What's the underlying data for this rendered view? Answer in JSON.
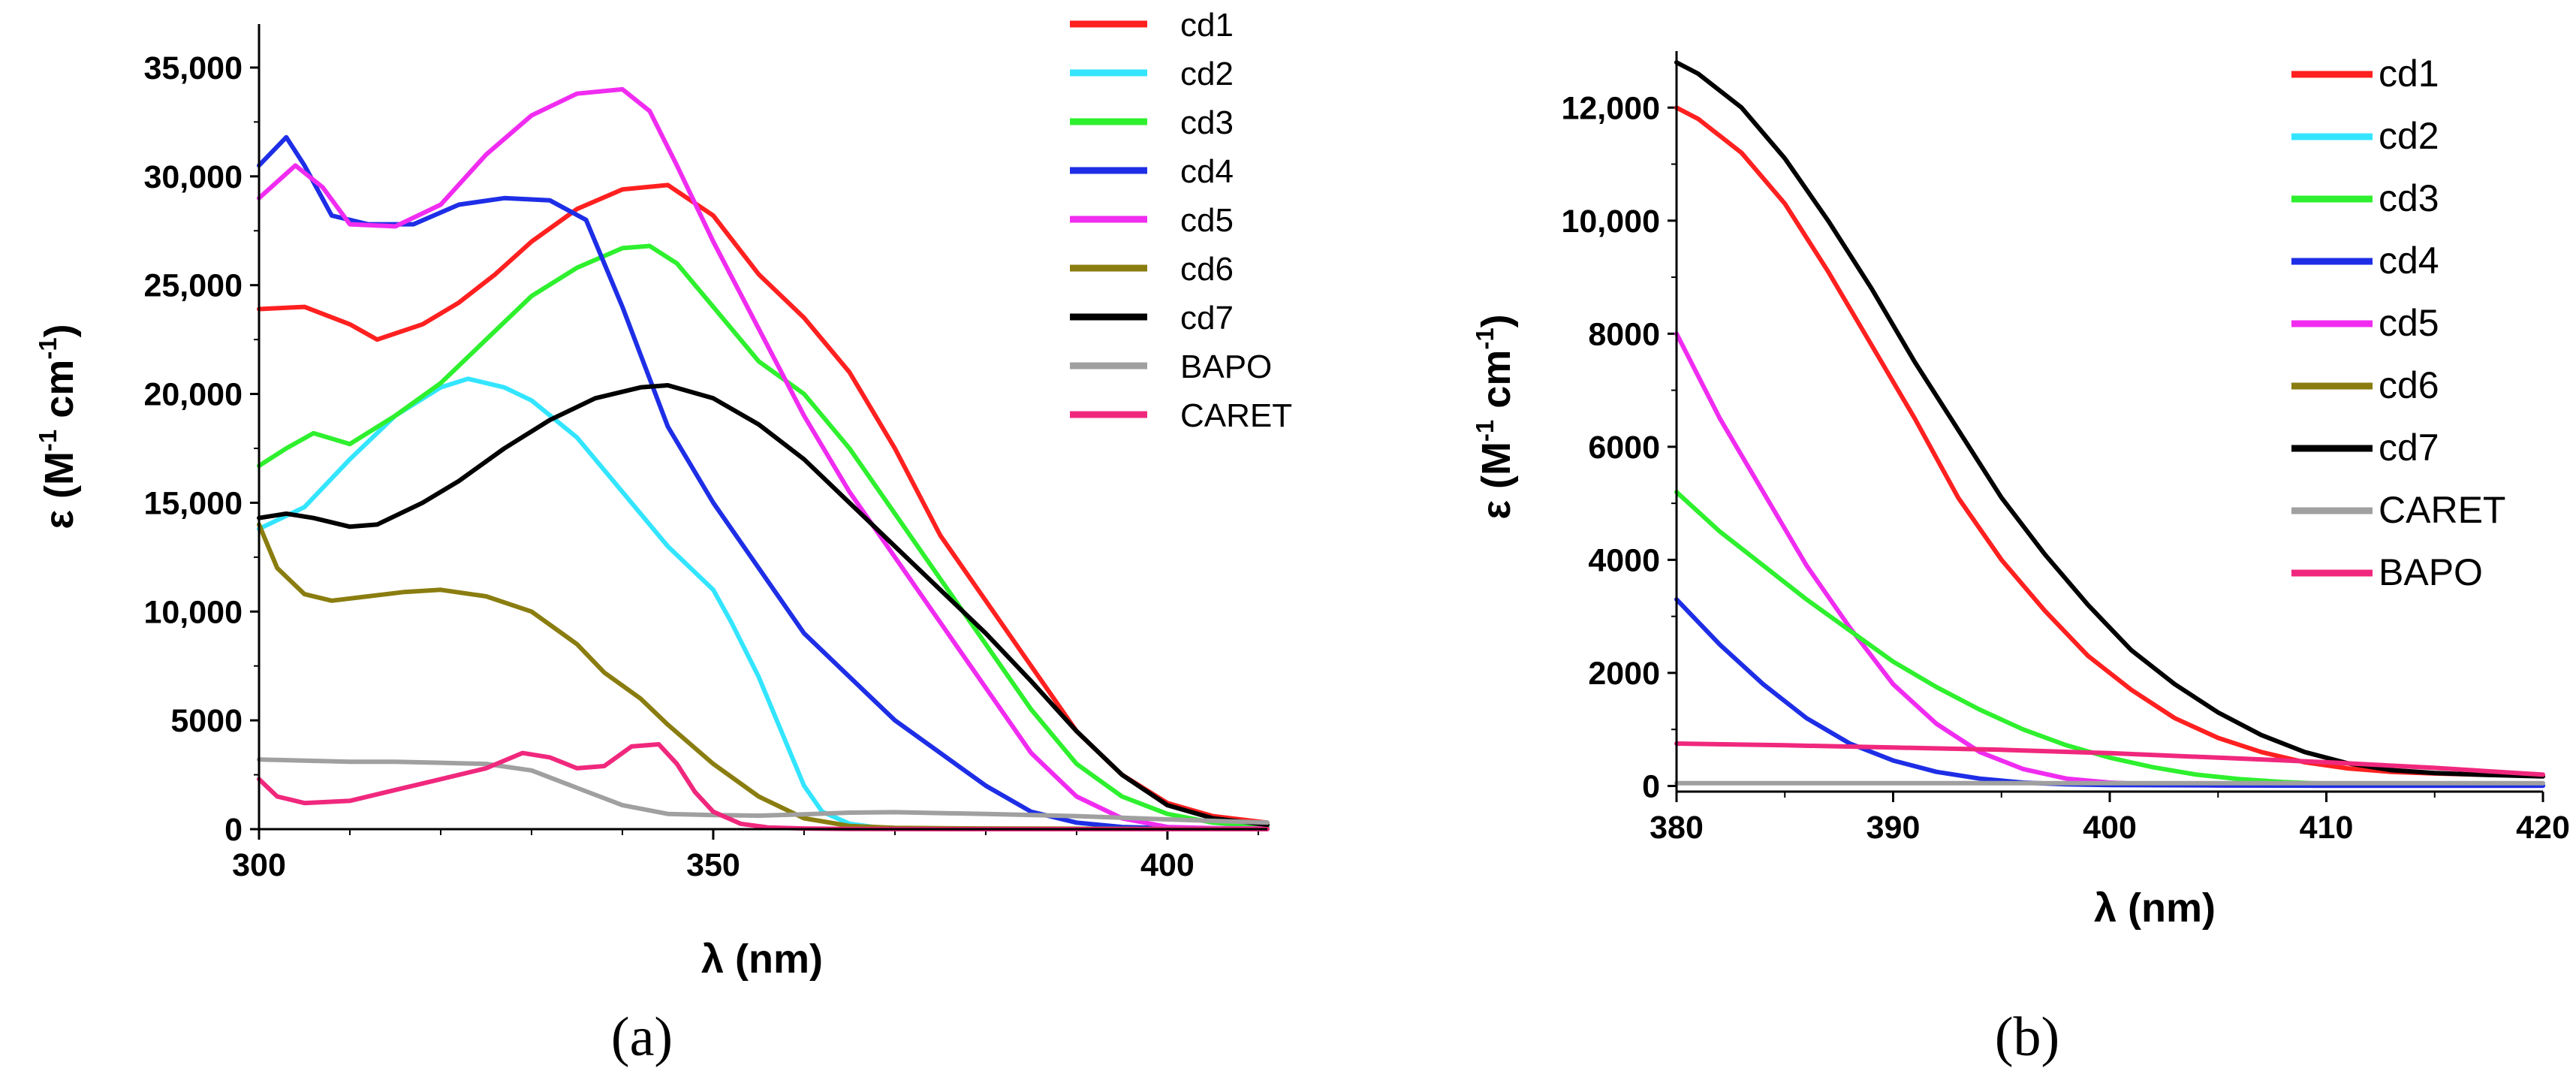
{
  "colors": {
    "cd1": "#ff2020",
    "cd2": "#33e5ff",
    "cd3": "#2ef02e",
    "cd4": "#1e2ee6",
    "cd5": "#f02cf0",
    "cd6": "#8a7d10",
    "cd7": "#000000",
    "BAPO": "#a0a0a0",
    "CARET": "#f0287d",
    "legend_cd4_text": "#1e2ee6"
  },
  "chart_data": [
    {
      "type": "line",
      "caption": "(a)",
      "xlabel": "λ (nm)",
      "ylabel_main": "ε (M",
      "ylabel_exp1": "-1",
      "ylabel_mid": " cm",
      "ylabel_exp2": "-1",
      "ylabel_end": ")",
      "xlim": [
        300,
        411
      ],
      "ylim": [
        0,
        37000
      ],
      "xticks": [
        300,
        350,
        400
      ],
      "xtick_labels": [
        "300",
        "350",
        "400"
      ],
      "yticks": [
        0,
        5000,
        10000,
        15000,
        20000,
        25000,
        30000,
        35000
      ],
      "ytick_labels": [
        "0",
        "5000",
        "10,000",
        "15,000",
        "20,000",
        "25,000",
        "30,000",
        "35,000"
      ],
      "legend_position": "top-right",
      "legend": [
        "cd1",
        "cd2",
        "cd3",
        "cd4",
        "cd5",
        "cd6",
        "cd7",
        "BAPO",
        "CARET"
      ],
      "series": [
        {
          "name": "cd1",
          "x": [
            300,
            305,
            310,
            313,
            318,
            322,
            326,
            330,
            335,
            340,
            345,
            350,
            355,
            360,
            365,
            370,
            375,
            380,
            385,
            390,
            395,
            400,
            405,
            411
          ],
          "y": [
            23900,
            24000,
            23200,
            22500,
            23200,
            24200,
            25500,
            27000,
            28500,
            29400,
            29600,
            28200,
            25500,
            23500,
            21000,
            17500,
            13500,
            10500,
            7500,
            4500,
            2500,
            1200,
            600,
            300
          ]
        },
        {
          "name": "cd2",
          "x": [
            300,
            305,
            310,
            315,
            320,
            323,
            327,
            330,
            335,
            340,
            345,
            350,
            352,
            355,
            358,
            360,
            362,
            365,
            368,
            370,
            375,
            380,
            385,
            390,
            400,
            411
          ],
          "y": [
            13800,
            14800,
            17000,
            19000,
            20300,
            20700,
            20300,
            19700,
            18000,
            15500,
            13000,
            11000,
            9500,
            7000,
            4000,
            2000,
            800,
            250,
            80,
            50,
            30,
            20,
            10,
            10,
            10,
            10
          ]
        },
        {
          "name": "cd3",
          "x": [
            300,
            303,
            306,
            310,
            315,
            320,
            325,
            330,
            335,
            340,
            343,
            346,
            350,
            355,
            360,
            365,
            370,
            375,
            380,
            385,
            390,
            395,
            400,
            405,
            411
          ],
          "y": [
            16700,
            17500,
            18200,
            17700,
            19000,
            20500,
            22500,
            24500,
            25800,
            26700,
            26800,
            26000,
            24000,
            21500,
            20000,
            17500,
            14500,
            11500,
            8500,
            5500,
            3000,
            1500,
            700,
            300,
            100
          ]
        },
        {
          "name": "cd4",
          "x": [
            300,
            303,
            305,
            308,
            312,
            317,
            322,
            327,
            332,
            336,
            340,
            345,
            350,
            355,
            360,
            365,
            370,
            375,
            380,
            385,
            390,
            395,
            400
          ],
          "y": [
            30500,
            31800,
            30500,
            28200,
            27800,
            27800,
            28700,
            29000,
            28900,
            28000,
            24000,
            18500,
            15000,
            12000,
            9000,
            7000,
            5000,
            3500,
            2000,
            800,
            300,
            100,
            50
          ]
        },
        {
          "name": "cd5",
          "x": [
            300,
            304,
            307,
            310,
            315,
            320,
            325,
            330,
            335,
            340,
            343,
            346,
            350,
            355,
            360,
            365,
            370,
            375,
            380,
            385,
            390,
            395,
            400,
            405,
            411
          ],
          "y": [
            29000,
            30500,
            29500,
            27800,
            27700,
            28700,
            31000,
            32800,
            33800,
            34000,
            33000,
            30500,
            27000,
            23000,
            19000,
            15500,
            12500,
            9500,
            6500,
            3500,
            1500,
            500,
            100,
            50,
            30
          ]
        },
        {
          "name": "cd6",
          "x": [
            300,
            302,
            305,
            308,
            312,
            316,
            320,
            325,
            330,
            335,
            338,
            342,
            345,
            350,
            355,
            360,
            365,
            370,
            375,
            380,
            390,
            400,
            411
          ],
          "y": [
            14000,
            12000,
            10800,
            10500,
            10700,
            10900,
            11000,
            10700,
            10000,
            8500,
            7200,
            6000,
            4800,
            3000,
            1500,
            500,
            150,
            60,
            40,
            30,
            20,
            10,
            10
          ]
        },
        {
          "name": "cd7",
          "x": [
            300,
            303,
            306,
            310,
            313,
            318,
            322,
            327,
            332,
            337,
            342,
            345,
            350,
            355,
            360,
            365,
            370,
            375,
            380,
            385,
            390,
            395,
            400,
            405,
            411
          ],
          "y": [
            14300,
            14500,
            14300,
            13900,
            14000,
            15000,
            16000,
            17500,
            18800,
            19800,
            20300,
            20400,
            19800,
            18600,
            17000,
            15000,
            13000,
            11000,
            9000,
            6800,
            4500,
            2500,
            1100,
            500,
            200
          ]
        },
        {
          "name": "BAPO",
          "x": [
            300,
            305,
            310,
            315,
            320,
            325,
            330,
            335,
            340,
            345,
            350,
            355,
            360,
            365,
            370,
            375,
            380,
            390,
            400,
            411
          ],
          "y": [
            3200,
            3150,
            3100,
            3100,
            3050,
            3000,
            2700,
            1900,
            1100,
            700,
            650,
            620,
            680,
            760,
            780,
            740,
            700,
            600,
            450,
            300
          ]
        },
        {
          "name": "CARET",
          "x": [
            300,
            302,
            305,
            310,
            315,
            320,
            325,
            329,
            332,
            335,
            338,
            341,
            344,
            346,
            348,
            350,
            353,
            356,
            360,
            365,
            370,
            380,
            390,
            400,
            411
          ],
          "y": [
            2300,
            1500,
            1200,
            1300,
            1800,
            2300,
            2800,
            3500,
            3300,
            2800,
            2900,
            3800,
            3900,
            3000,
            1700,
            800,
            250,
            80,
            30,
            10,
            5,
            0,
            0,
            0,
            0
          ]
        }
      ]
    },
    {
      "type": "line",
      "caption": "(b)",
      "xlabel": "λ (nm)",
      "ylabel_main": "ε (M",
      "ylabel_exp1": "-1",
      "ylabel_mid": " cm",
      "ylabel_exp2": "-1",
      "ylabel_end": ")",
      "xlim": [
        380,
        420
      ],
      "ylim": [
        -100,
        13000
      ],
      "xticks": [
        380,
        390,
        400,
        410,
        420
      ],
      "xtick_labels": [
        "380",
        "390",
        "400",
        "410",
        "420"
      ],
      "yticks": [
        0,
        2000,
        4000,
        6000,
        8000,
        10000,
        12000
      ],
      "ytick_labels": [
        "0",
        "2000",
        "4000",
        "6000",
        "8000",
        "10,000",
        "12,000"
      ],
      "legend_position": "top-right",
      "legend": [
        "cd1",
        "cd2",
        "cd3",
        "cd4",
        "cd5",
        "cd6",
        "cd7",
        "CARET",
        "BAPO"
      ],
      "legend_color_keys": [
        "cd1",
        "cd2",
        "cd3",
        "cd4",
        "cd5",
        "cd6",
        "cd7",
        "BAPO",
        "CARET"
      ],
      "series": [
        {
          "name": "cd1",
          "color_key": "cd1",
          "x": [
            380,
            381,
            383,
            385,
            387,
            389,
            391,
            393,
            395,
            397,
            399,
            401,
            403,
            405,
            407,
            409,
            411,
            413,
            415,
            417,
            420
          ],
          "y": [
            12000,
            11800,
            11200,
            10300,
            9100,
            7800,
            6500,
            5100,
            4000,
            3100,
            2300,
            1700,
            1200,
            850,
            600,
            420,
            310,
            250,
            220,
            200,
            180
          ]
        },
        {
          "name": "cd7",
          "color_key": "cd7",
          "x": [
            380,
            381,
            383,
            385,
            387,
            389,
            391,
            393,
            395,
            397,
            399,
            401,
            403,
            405,
            407,
            409,
            411,
            413,
            415,
            417,
            420
          ],
          "y": [
            12800,
            12600,
            12000,
            11100,
            10000,
            8800,
            7500,
            6300,
            5100,
            4100,
            3200,
            2400,
            1800,
            1300,
            900,
            600,
            400,
            280,
            230,
            200,
            170
          ]
        },
        {
          "name": "cd5",
          "color_key": "cd5",
          "x": [
            380,
            382,
            384,
            386,
            388,
            390,
            392,
            394,
            396,
            398,
            400,
            402,
            405,
            410,
            420
          ],
          "y": [
            8000,
            6500,
            5200,
            3900,
            2800,
            1800,
            1100,
            600,
            300,
            130,
            60,
            30,
            10,
            5,
            5
          ]
        },
        {
          "name": "cd3",
          "color_key": "cd3",
          "x": [
            380,
            382,
            384,
            386,
            388,
            390,
            392,
            394,
            396,
            398,
            400,
            402,
            404,
            406,
            408,
            410,
            415,
            420
          ],
          "y": [
            5200,
            4500,
            3900,
            3300,
            2750,
            2200,
            1750,
            1350,
            1000,
            720,
            500,
            330,
            200,
            120,
            70,
            40,
            15,
            10
          ]
        },
        {
          "name": "cd4",
          "color_key": "cd4",
          "x": [
            380,
            382,
            384,
            386,
            388,
            390,
            392,
            394,
            396,
            398,
            400,
            405,
            410,
            420
          ],
          "y": [
            3300,
            2500,
            1800,
            1200,
            750,
            450,
            250,
            130,
            60,
            30,
            15,
            10,
            5,
            5
          ]
        },
        {
          "name": "CARET",
          "color_key": "BAPO",
          "x": [
            380,
            390,
            400,
            410,
            420
          ],
          "y": [
            50,
            50,
            50,
            50,
            50
          ]
        },
        {
          "name": "BAPO",
          "color_key": "CARET",
          "x": [
            380,
            385,
            390,
            395,
            400,
            405,
            410,
            415,
            420
          ],
          "y": [
            750,
            720,
            680,
            640,
            580,
            500,
            420,
            320,
            200
          ]
        }
      ]
    }
  ]
}
